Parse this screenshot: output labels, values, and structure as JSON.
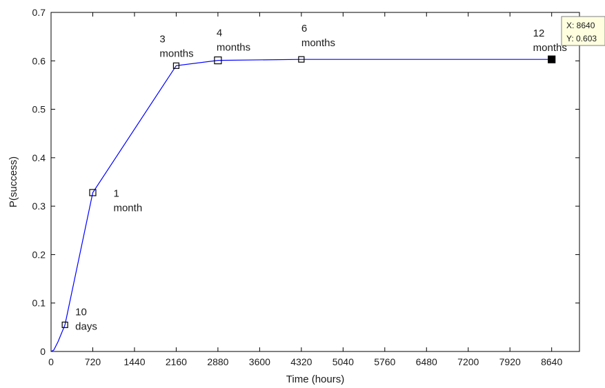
{
  "chart_data": {
    "type": "line",
    "title": "",
    "xlabel": "Time (hours)",
    "ylabel": "P(success)",
    "xlim": [
      0,
      9120
    ],
    "ylim": [
      0,
      0.7
    ],
    "x_ticks": [
      0,
      720,
      1440,
      2160,
      2880,
      3600,
      4320,
      5040,
      5760,
      6480,
      7200,
      7920,
      8640
    ],
    "y_ticks": [
      0,
      0.1,
      0.2,
      0.3,
      0.4,
      0.5,
      0.6,
      0.7
    ],
    "y_tick_labels": [
      "0",
      "0.1",
      "0.2",
      "0.3",
      "0.4",
      "0.5",
      "0.6",
      "0.7"
    ],
    "grid": false,
    "series": [
      {
        "color": "#0000ff",
        "x": [
          0,
          48,
          120,
          240,
          720,
          2160,
          2880,
          4320,
          8640
        ],
        "y": [
          0,
          0.003,
          0.02,
          0.055,
          0.328,
          0.59,
          0.601,
          0.603,
          0.603
        ]
      }
    ],
    "markers": [
      {
        "x": 240,
        "y": 0.055,
        "label": [
          "10",
          "days"
        ],
        "filled": false
      },
      {
        "x": 720,
        "y": 0.328,
        "label": [
          "1",
          "month"
        ],
        "filled": false
      },
      {
        "x": 2160,
        "y": 0.59,
        "label": [
          "3",
          "months"
        ],
        "filled": false
      },
      {
        "x": 2880,
        "y": 0.601,
        "label": [
          "4",
          "months"
        ],
        "filled": false
      },
      {
        "x": 4320,
        "y": 0.603,
        "label": [
          "6",
          "months"
        ],
        "filled": false
      },
      {
        "x": 8640,
        "y": 0.603,
        "label": [
          "12",
          "months"
        ],
        "filled": true
      }
    ],
    "datatip": {
      "x_text": "X: 8640",
      "y_text": "Y: 0.603"
    }
  }
}
